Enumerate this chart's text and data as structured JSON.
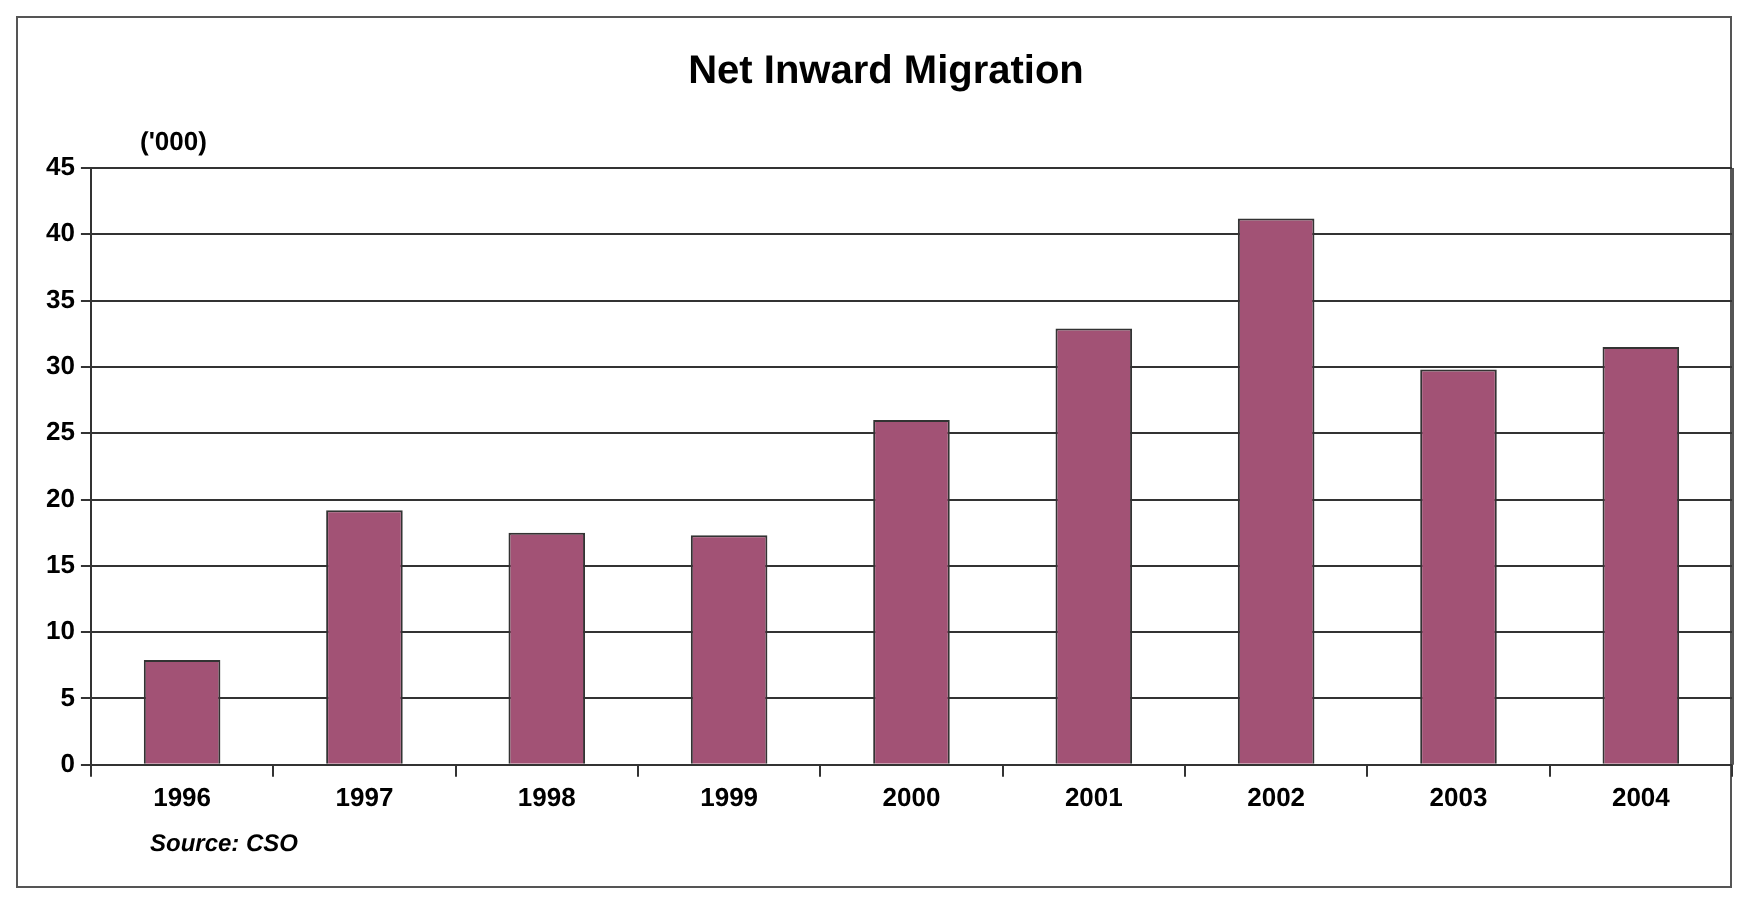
{
  "chart_data": {
    "type": "bar",
    "title": "Net Inward Migration",
    "ylabel": "('000)",
    "categories": [
      "1996",
      "1997",
      "1998",
      "1999",
      "2000",
      "2001",
      "2002",
      "2003",
      "2004"
    ],
    "values": [
      7.9,
      19.2,
      17.5,
      17.3,
      26.0,
      32.9,
      41.2,
      29.8,
      31.5
    ],
    "color": "#a25275",
    "ylim": [
      0,
      45
    ],
    "yticks": [
      0,
      5,
      10,
      15,
      20,
      25,
      30,
      35,
      40,
      45
    ],
    "grid": "y",
    "legend": false,
    "annotations": [
      "Source: CSO"
    ]
  }
}
